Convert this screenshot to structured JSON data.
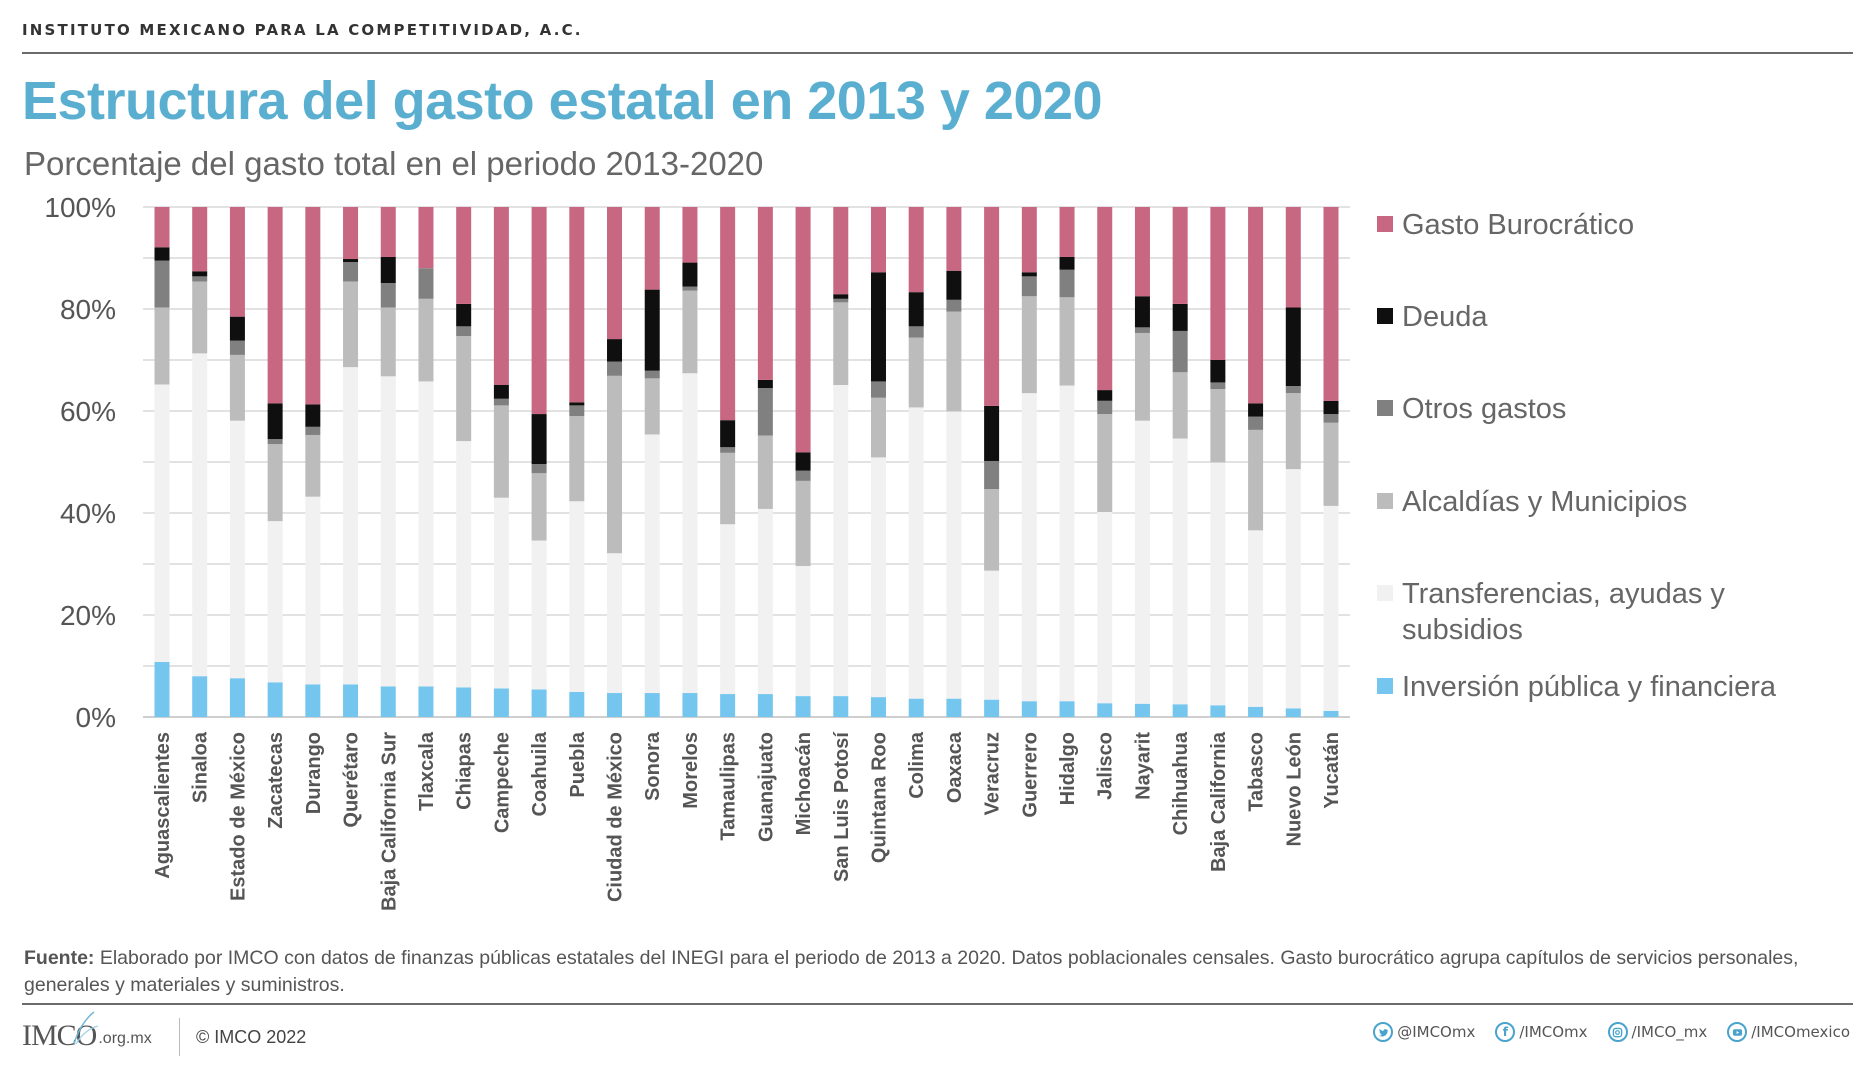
{
  "header": {
    "org_name": "INSTITUTO MEXICANO PARA LA COMPETITIVIDAD, A.C.",
    "title": "Estructura del gasto estatal en 2013 y 2020",
    "subtitle": "Porcentaje del gasto total en el periodo 2013-2020"
  },
  "chart_data": {
    "type": "bar",
    "stacked": true,
    "title": "Estructura del gasto estatal en 2013 y 2020",
    "subtitle": "Porcentaje del gasto total en el periodo 2013-2020",
    "xlabel": "",
    "ylabel": "",
    "ylim": [
      0,
      100
    ],
    "yticks": [
      "0%",
      "20%",
      "40%",
      "60%",
      "80%",
      "100%"
    ],
    "ytick_values": [
      0,
      20,
      40,
      60,
      80,
      100
    ],
    "grid": true,
    "grid_step": 10,
    "legend_position": "right",
    "categories": [
      "Aguascalientes",
      "Sinaloa",
      "Estado de México",
      "Zacatecas",
      "Durango",
      "Querétaro",
      "Baja California Sur",
      "Tlaxcala",
      "Chiapas",
      "Campeche",
      "Coahuila",
      "Puebla",
      "Ciudad de México",
      "Sonora",
      "Morelos",
      "Tamaulipas",
      "Guanajuato",
      "Michoacán",
      "San Luis Potosí",
      "Quintana Roo",
      "Colima",
      "Oaxaca",
      "Veracruz",
      "Guerrero",
      "Hidalgo",
      "Jalisco",
      "Nayarit",
      "Chihuahua",
      "Baja California",
      "Tabasco",
      "Nuevo León",
      "Yucatán"
    ],
    "series": [
      {
        "name": "Inversión pública y financiera",
        "color": "#74c6ee",
        "values": [
          10.8,
          8.0,
          7.6,
          6.8,
          6.4,
          6.4,
          6.0,
          6.0,
          5.8,
          5.6,
          5.4,
          4.9,
          4.7,
          4.7,
          4.7,
          4.5,
          4.5,
          4.1,
          4.1,
          3.9,
          3.6,
          3.6,
          3.4,
          3.1,
          3.1,
          2.7,
          2.6,
          2.5,
          2.3,
          2.0,
          1.7,
          1.2
        ]
      },
      {
        "name": "Transferencias, ayudas y subsidios",
        "color": "#f1f1f1",
        "values": [
          54.4,
          63.3,
          50.5,
          31.6,
          36.8,
          62.2,
          60.8,
          59.8,
          48.3,
          37.4,
          29.2,
          37.4,
          27.4,
          50.7,
          62.7,
          33.3,
          36.3,
          25.5,
          61.0,
          47.0,
          57.1,
          56.3,
          25.3,
          60.4,
          61.9,
          37.5,
          55.5,
          52.1,
          47.6,
          34.6,
          46.9,
          40.2
        ]
      },
      {
        "name": "Alcaldías y Municipios",
        "color": "#bcbcbc",
        "values": [
          15.1,
          14.1,
          12.9,
          15.1,
          12.1,
          16.8,
          13.5,
          16.2,
          20.6,
          18.1,
          13.2,
          16.7,
          34.8,
          11.0,
          16.2,
          14.0,
          14.4,
          16.7,
          16.2,
          11.7,
          13.7,
          19.6,
          16.0,
          19.0,
          17.3,
          19.2,
          17.2,
          13.0,
          14.4,
          19.7,
          14.9,
          16.3
        ]
      },
      {
        "name": "Otros gastos",
        "color": "#808080",
        "values": [
          9.2,
          1.0,
          2.8,
          1.0,
          1.6,
          3.8,
          4.8,
          6.0,
          1.9,
          1.3,
          1.8,
          2.1,
          2.8,
          1.5,
          0.8,
          1.1,
          9.3,
          2.0,
          0.7,
          3.2,
          2.2,
          2.3,
          5.5,
          3.9,
          5.4,
          2.6,
          1.1,
          8.1,
          1.3,
          2.6,
          1.4,
          1.7
        ]
      },
      {
        "name": "Deuda",
        "color": "#0f0f0f",
        "values": [
          2.6,
          1.0,
          4.7,
          7.0,
          4.4,
          0.6,
          5.1,
          0.0,
          4.4,
          2.7,
          9.8,
          0.6,
          4.4,
          15.9,
          4.7,
          5.3,
          1.6,
          3.6,
          0.9,
          21.4,
          6.7,
          5.7,
          10.8,
          0.8,
          2.5,
          2.1,
          6.1,
          5.3,
          4.4,
          2.6,
          15.4,
          2.6
        ]
      },
      {
        "name": "Gasto Burocrático",
        "color": "#c76781",
        "values": [
          7.9,
          12.6,
          21.5,
          38.5,
          38.7,
          10.2,
          9.8,
          12.0,
          19.0,
          34.9,
          40.6,
          38.3,
          25.9,
          16.2,
          10.9,
          41.8,
          33.9,
          48.1,
          17.1,
          12.8,
          16.7,
          12.5,
          39.0,
          12.8,
          9.8,
          35.9,
          17.5,
          19.0,
          30.0,
          38.5,
          19.7,
          38.0
        ]
      }
    ]
  },
  "legend": {
    "items": [
      {
        "label": "Gasto Burocrático",
        "color": "#c76781"
      },
      {
        "label": "Deuda",
        "color": "#0f0f0f"
      },
      {
        "label": "Otros gastos",
        "color": "#808080"
      },
      {
        "label": "Alcaldías y Municipios",
        "color": "#bcbcbc"
      },
      {
        "label": "Transferencias, ayudas y subsidios",
        "color": "#f1f1f1"
      },
      {
        "label": "Inversión pública y financiera",
        "color": "#74c6ee"
      }
    ]
  },
  "footnote": {
    "label": "Fuente:",
    "text": " Elaborado por IMCO con datos de finanzas públicas estatales del INEGI  para el periodo de 2013 a 2020. Datos poblacionales censales. Gasto burocrático agrupa capítulos de servicios personales, generales y materiales y suministros."
  },
  "footer": {
    "logo_text": "IMCO",
    "logo_domain": ".org.mx",
    "copyright": "© IMCO 2022",
    "socials": [
      {
        "icon": "twitter-icon",
        "handle": "@IMCOmx"
      },
      {
        "icon": "facebook-icon",
        "handle": "/IMCOmx"
      },
      {
        "icon": "instagram-icon",
        "handle": "/IMCO_mx"
      },
      {
        "icon": "youtube-icon",
        "handle": "/IMCOmexico"
      }
    ]
  },
  "colors": {
    "title": "#5aafd0",
    "accent_icon": "#4aa3cc"
  }
}
